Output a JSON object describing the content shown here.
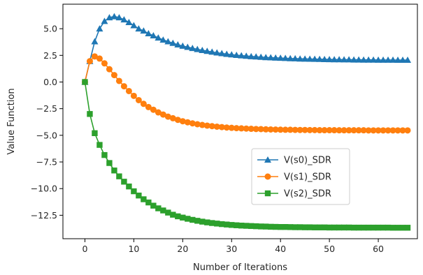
{
  "chart_data": {
    "type": "line",
    "title": "",
    "xlabel": "Number of Iterations",
    "ylabel": "Value Function",
    "xlim": [
      -4.5,
      68
    ],
    "ylim": [
      -14.7,
      7.3
    ],
    "xticks": [
      0,
      10,
      20,
      30,
      40,
      50,
      60
    ],
    "xtick_labels": [
      "0",
      "10",
      "20",
      "30",
      "40",
      "50",
      "60"
    ],
    "yticks": [
      5.0,
      2.5,
      0.0,
      -2.5,
      -5.0,
      -7.5,
      -10.0,
      -12.5
    ],
    "ytick_labels": [
      "5.0",
      "2.5",
      "0.0",
      "−2.5",
      "−5.0",
      "−7.5",
      "−10.0",
      "−12.5"
    ],
    "grid": false,
    "legend_position": "center-right",
    "x": [
      0,
      1,
      2,
      3,
      4,
      5,
      6,
      7,
      8,
      9,
      10,
      11,
      12,
      13,
      14,
      15,
      16,
      17,
      18,
      19,
      20,
      21,
      22,
      23,
      24,
      25,
      26,
      27,
      28,
      29,
      30,
      31,
      32,
      33,
      34,
      35,
      36,
      37,
      38,
      39,
      40,
      41,
      42,
      43,
      44,
      45,
      46,
      47,
      48,
      49,
      50,
      51,
      52,
      53,
      54,
      55,
      56,
      57,
      58,
      59,
      60,
      61,
      62,
      63,
      64,
      65,
      66
    ],
    "series": [
      {
        "name": "V(s0)_SDR",
        "color": "#1f77b4",
        "marker": "triangle",
        "values": [
          0.0,
          1.95,
          3.8,
          5.0,
          5.7,
          6.05,
          6.15,
          6.05,
          5.85,
          5.6,
          5.3,
          5.0,
          4.8,
          4.55,
          4.35,
          4.15,
          3.95,
          3.8,
          3.65,
          3.5,
          3.38,
          3.27,
          3.17,
          3.07,
          2.98,
          2.9,
          2.82,
          2.75,
          2.68,
          2.62,
          2.57,
          2.52,
          2.48,
          2.44,
          2.4,
          2.37,
          2.34,
          2.31,
          2.29,
          2.27,
          2.25,
          2.23,
          2.21,
          2.2,
          2.18,
          2.17,
          2.16,
          2.15,
          2.14,
          2.13,
          2.12,
          2.11,
          2.11,
          2.1,
          2.1,
          2.09,
          2.09,
          2.08,
          2.08,
          2.08,
          2.07,
          2.07,
          2.07,
          2.07,
          2.06,
          2.06,
          2.06
        ]
      },
      {
        "name": "V(s1)_SDR",
        "color": "#ff7f0e",
        "marker": "circle",
        "values": [
          0.0,
          1.95,
          2.4,
          2.2,
          1.75,
          1.2,
          0.65,
          0.1,
          -0.4,
          -0.85,
          -1.3,
          -1.7,
          -2.05,
          -2.35,
          -2.6,
          -2.85,
          -3.05,
          -3.25,
          -3.4,
          -3.55,
          -3.68,
          -3.78,
          -3.88,
          -3.96,
          -4.03,
          -4.09,
          -4.14,
          -4.19,
          -4.23,
          -4.27,
          -4.3,
          -4.33,
          -4.35,
          -4.37,
          -4.39,
          -4.41,
          -4.42,
          -4.44,
          -4.45,
          -4.46,
          -4.47,
          -4.48,
          -4.48,
          -4.49,
          -4.5,
          -4.5,
          -4.51,
          -4.51,
          -4.52,
          -4.52,
          -4.52,
          -4.52,
          -4.53,
          -4.53,
          -4.53,
          -4.53,
          -4.53,
          -4.53,
          -4.54,
          -4.54,
          -4.54,
          -4.54,
          -4.54,
          -4.54,
          -4.54,
          -4.54,
          -4.54
        ]
      },
      {
        "name": "V(s2)_SDR",
        "color": "#2ca02c",
        "marker": "square",
        "values": [
          0.0,
          -3.0,
          -4.8,
          -5.9,
          -6.85,
          -7.6,
          -8.3,
          -8.85,
          -9.35,
          -9.8,
          -10.25,
          -10.65,
          -11.0,
          -11.3,
          -11.6,
          -11.85,
          -12.05,
          -12.25,
          -12.45,
          -12.6,
          -12.72,
          -12.83,
          -12.93,
          -13.02,
          -13.1,
          -13.17,
          -13.23,
          -13.28,
          -13.33,
          -13.37,
          -13.41,
          -13.44,
          -13.47,
          -13.49,
          -13.51,
          -13.53,
          -13.55,
          -13.56,
          -13.58,
          -13.59,
          -13.6,
          -13.6,
          -13.61,
          -13.62,
          -13.62,
          -13.63,
          -13.63,
          -13.64,
          -13.64,
          -13.64,
          -13.65,
          -13.65,
          -13.65,
          -13.65,
          -13.65,
          -13.66,
          -13.66,
          -13.66,
          -13.66,
          -13.66,
          -13.66,
          -13.66,
          -13.66,
          -13.67,
          -13.67,
          -13.67,
          -13.67
        ]
      }
    ]
  }
}
